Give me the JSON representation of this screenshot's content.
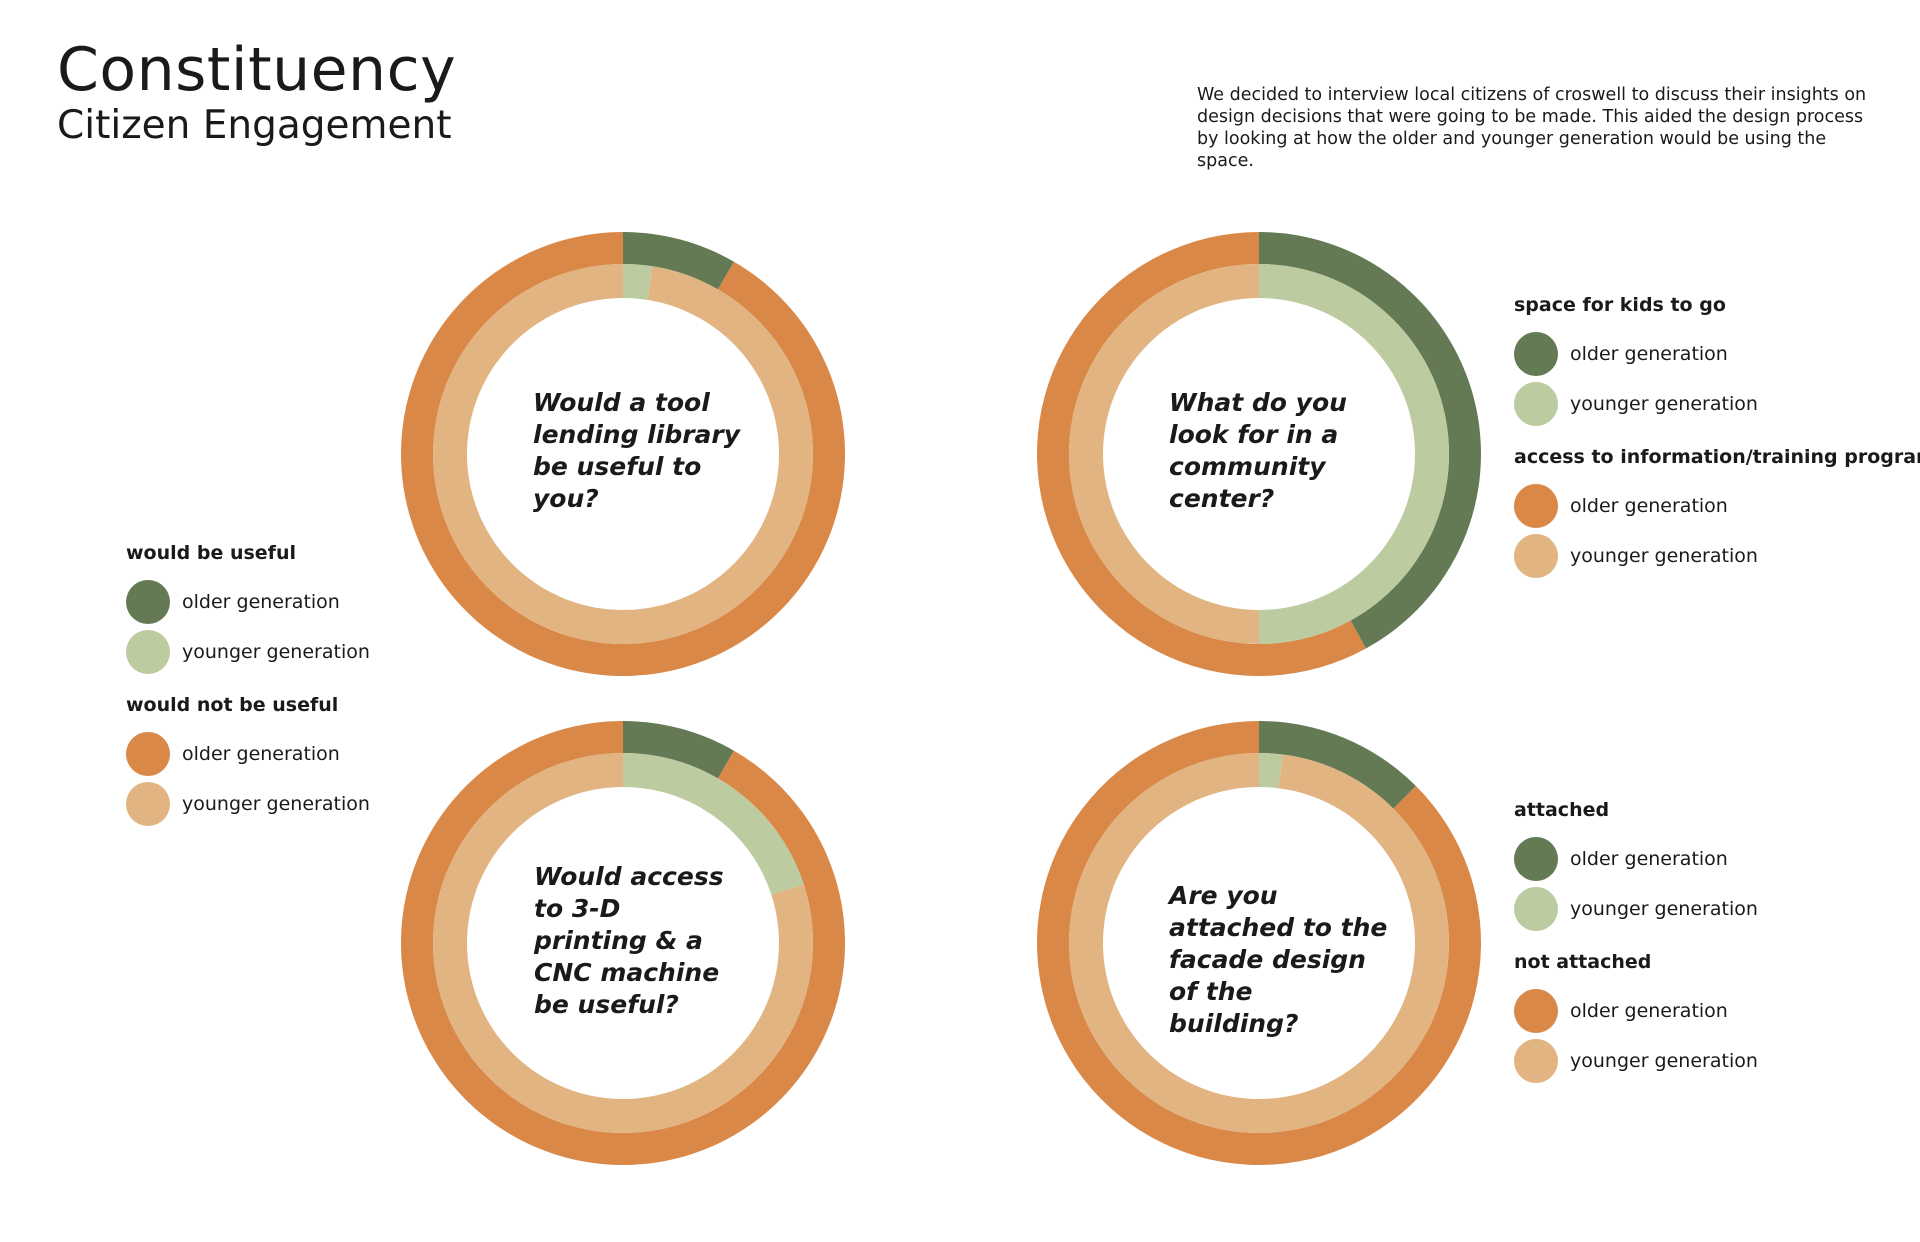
{
  "header": {
    "title": "Constituency",
    "subtitle": "Citizen Engagement",
    "intro": "We decided to interview local citizens of croswell to discuss their insights on design decisions that were going to be made. This aided the design process by looking at how the older and younger generation would be using the space."
  },
  "colors": {
    "older_yes": "#637a55",
    "younger_yes": "#bdcba0",
    "older_no": "#da8847",
    "younger_no": "#e2b482"
  },
  "labels": {
    "older": "older generation",
    "younger": "younger generation"
  },
  "legends": [
    {
      "group1": "would be useful",
      "group2": "would not be useful"
    },
    {
      "group1": "space for kids to go",
      "group2": "access to information/training program"
    },
    {
      "group1": "attached",
      "group2": "not attached"
    }
  ],
  "chart_data": [
    {
      "type": "pie",
      "question": "Would a tool lending library be useful to you?",
      "rings": [
        {
          "name": "older generation",
          "slices": [
            {
              "category": "would be useful",
              "share": 0.0833
            },
            {
              "category": "would not be useful",
              "share": 0.9167
            }
          ]
        },
        {
          "name": "younger generation",
          "slices": [
            {
              "category": "would be useful",
              "share": 0.025
            },
            {
              "category": "would not be useful",
              "share": 0.975
            }
          ]
        }
      ]
    },
    {
      "type": "pie",
      "question": "What do you look for in a community center?",
      "rings": [
        {
          "name": "older generation",
          "slices": [
            {
              "category": "space for kids to go",
              "share": 0.42
            },
            {
              "category": "access to information/training program",
              "share": 0.58
            }
          ]
        },
        {
          "name": "younger generation",
          "slices": [
            {
              "category": "space for kids to go",
              "share": 0.5
            },
            {
              "category": "access to information/training program",
              "share": 0.5
            }
          ]
        }
      ]
    },
    {
      "type": "pie",
      "question": "Would access to 3-D printing & a CNC machine be useful?",
      "rings": [
        {
          "name": "older generation",
          "slices": [
            {
              "category": "would be useful",
              "share": 0.0833
            },
            {
              "category": "would not be useful",
              "share": 0.9167
            }
          ]
        },
        {
          "name": "younger generation",
          "slices": [
            {
              "category": "would be useful",
              "share": 0.2
            },
            {
              "category": "would not be useful",
              "share": 0.8
            }
          ]
        }
      ]
    },
    {
      "type": "pie",
      "question": "Are you attached to the facade design of the building?",
      "rings": [
        {
          "name": "older generation",
          "slices": [
            {
              "category": "attached",
              "share": 0.125
            },
            {
              "category": "not attached",
              "share": 0.875
            }
          ]
        },
        {
          "name": "younger generation",
          "slices": [
            {
              "category": "attached",
              "share": 0.02
            },
            {
              "category": "not attached",
              "share": 0.98
            }
          ]
        }
      ]
    }
  ]
}
